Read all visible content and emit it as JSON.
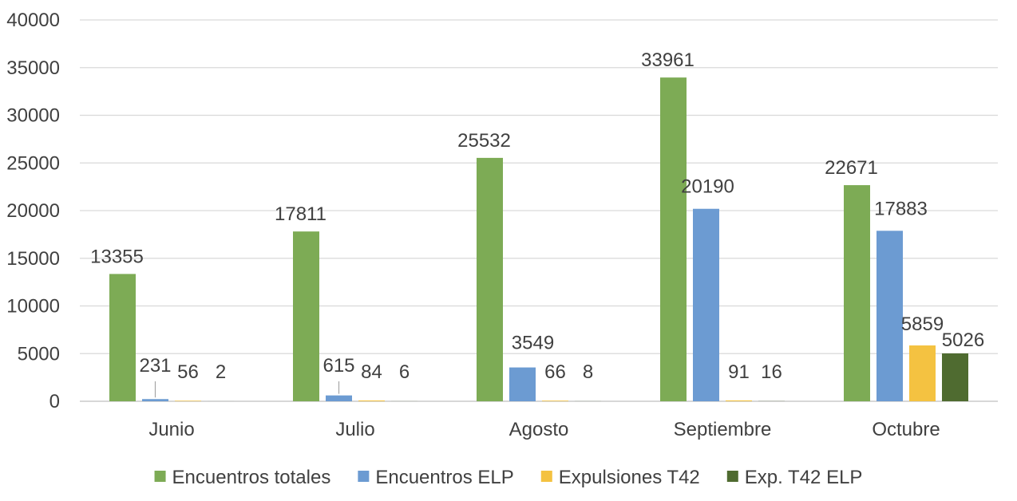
{
  "chart_data": {
    "type": "bar",
    "title": "",
    "xlabel": "",
    "ylabel": "",
    "ylim": [
      0,
      40000
    ],
    "yticks": [
      0,
      5000,
      10000,
      15000,
      20000,
      25000,
      30000,
      35000,
      40000
    ],
    "grid": true,
    "legend_position": "bottom",
    "categories": [
      "Junio",
      "Julio",
      "Agosto",
      "Septiembre",
      "Octubre"
    ],
    "series": [
      {
        "name": "Encuentros totales",
        "color": "#7dab55",
        "values": [
          13355,
          17811,
          25532,
          33961,
          22671
        ]
      },
      {
        "name": "Encuentros ELP",
        "color": "#6c9bd2",
        "values": [
          231,
          615,
          3549,
          20190,
          17883
        ]
      },
      {
        "name": "Expulsiones T42",
        "color": "#f4c241",
        "values": [
          56,
          84,
          66,
          91,
          5859
        ]
      },
      {
        "name": "Exp. T42 ELP",
        "color": "#4f6b30",
        "values": [
          2,
          6,
          8,
          16,
          5026
        ]
      }
    ]
  },
  "colors": {
    "gridline": "#d9d9d9",
    "axis": "#bfbfbf",
    "text": "#404040",
    "leader": "#a6a6a6"
  }
}
